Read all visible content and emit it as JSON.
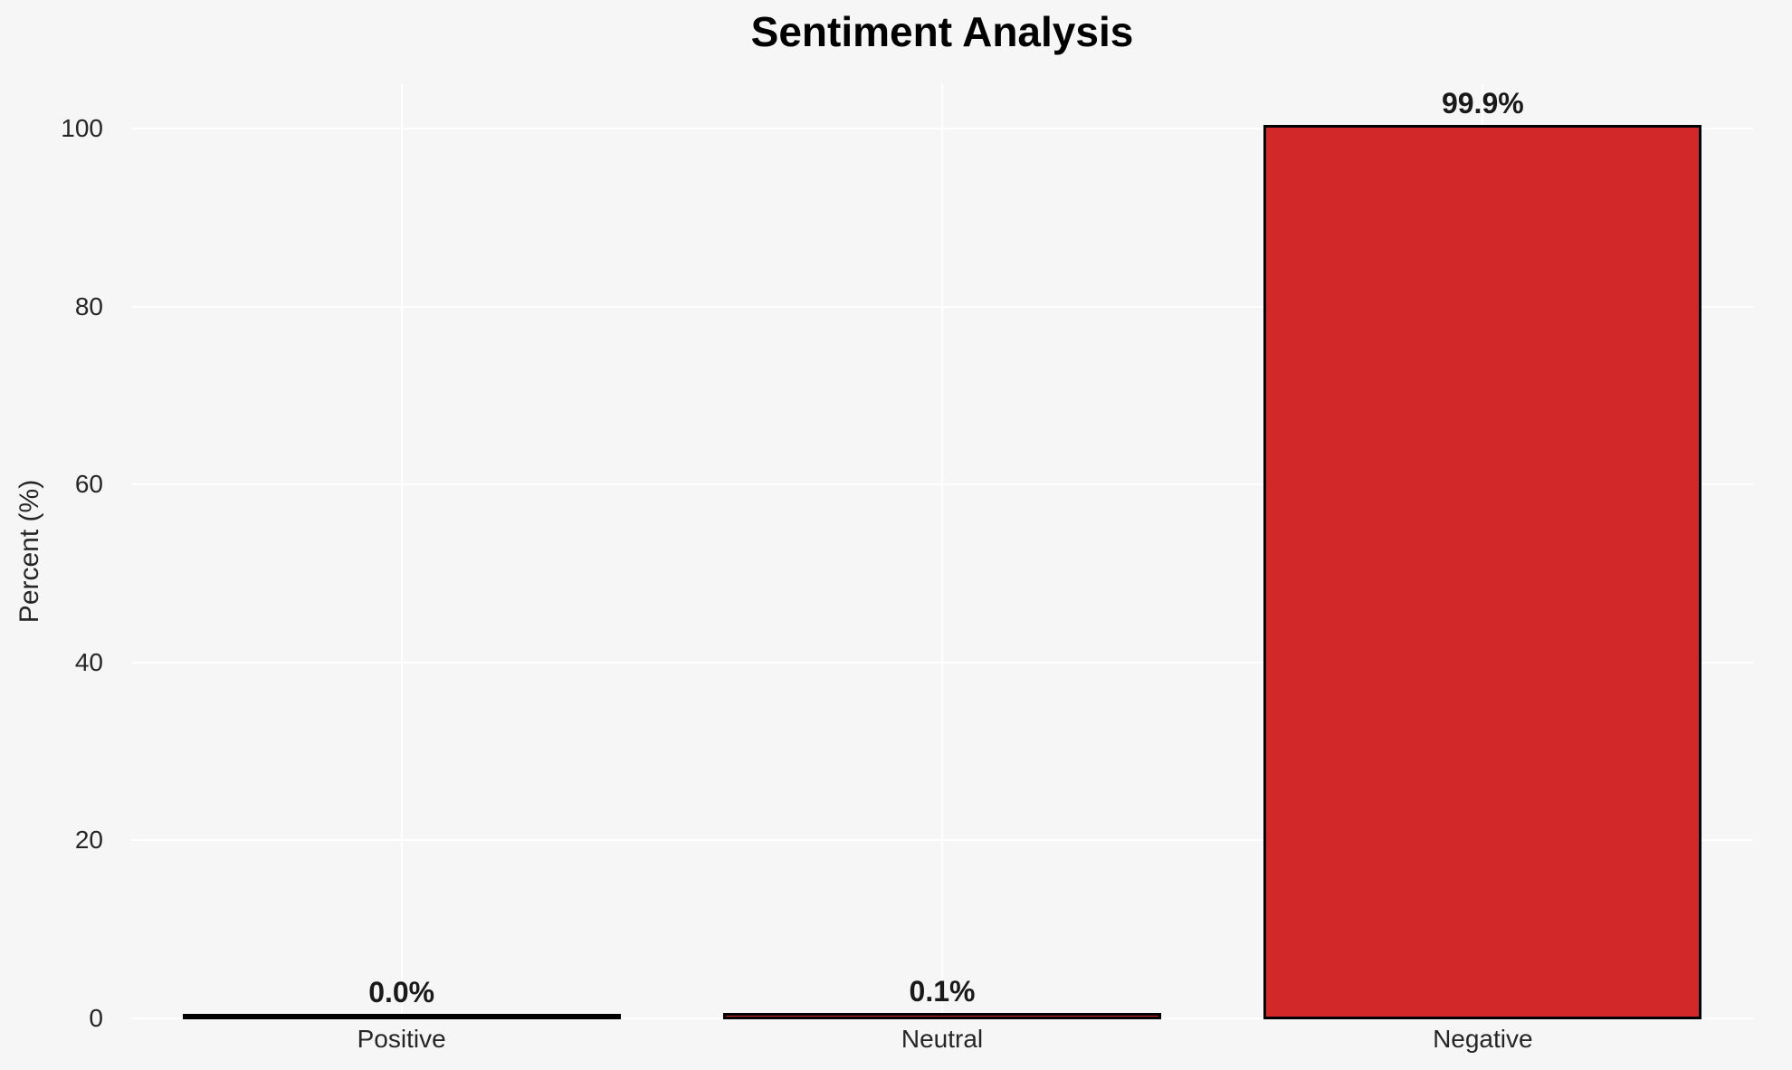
{
  "chart_data": {
    "type": "bar",
    "title": "Sentiment Analysis",
    "xlabel": "",
    "ylabel": "Percent (%)",
    "categories": [
      "Positive",
      "Neutral",
      "Negative"
    ],
    "values": [
      0.0,
      0.1,
      99.9
    ],
    "bar_labels": [
      "0.0%",
      "0.1%",
      "99.9%"
    ],
    "yticks": [
      0,
      20,
      40,
      60,
      80,
      100
    ],
    "ylim": [
      0,
      105
    ],
    "grid": "both",
    "legend": "none",
    "bar_width_fraction": 0.8,
    "colors": {
      "bar_fill": "#d2282a",
      "bar_edge": "#000000",
      "background": "#f6f6f7",
      "gridline": "#ffffff",
      "tick_text": "#262626",
      "label_text": "#1a1a1a",
      "title_text": "#000000"
    }
  }
}
